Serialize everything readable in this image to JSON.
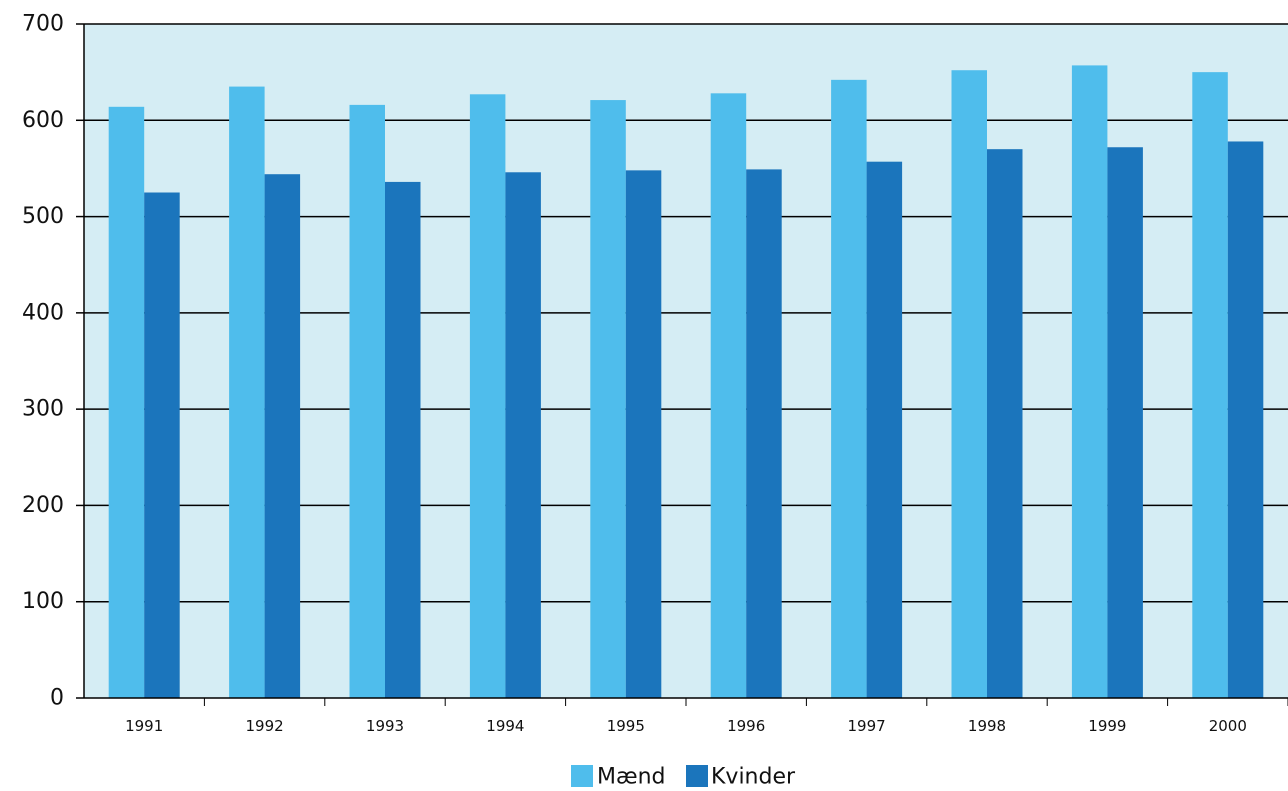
{
  "chart_data": {
    "type": "bar",
    "title": "",
    "xlabel": "",
    "ylabel": "",
    "categories": [
      "1991",
      "1992",
      "1993",
      "1994",
      "1995",
      "1996",
      "1997",
      "1998",
      "1999",
      "2000"
    ],
    "series": [
      {
        "name": "Mænd",
        "color": "#4fbdec",
        "values": [
          614,
          635,
          616,
          627,
          621,
          628,
          642,
          652,
          657,
          650
        ]
      },
      {
        "name": "Kvinder",
        "color": "#1b75bc",
        "values": [
          525,
          544,
          536,
          546,
          548,
          549,
          557,
          570,
          572,
          578
        ]
      }
    ],
    "ylim": [
      0,
      700
    ],
    "yticks": [
      "0",
      "100",
      "200",
      "300",
      "400",
      "500",
      "600",
      "700"
    ],
    "grid": true,
    "legend": "bottom-center",
    "colors": {
      "plot_background": "#d5edf4",
      "gridline": "#000000",
      "axis": "#000000"
    }
  }
}
